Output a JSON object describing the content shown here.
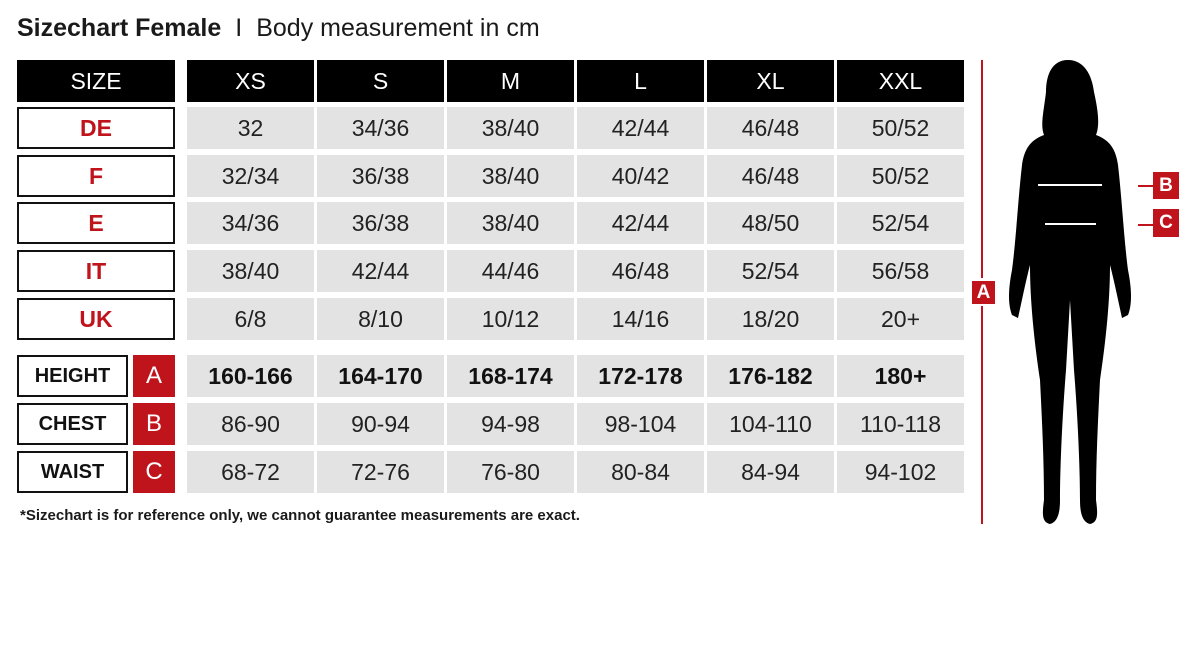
{
  "title": {
    "main": "Sizechart Female",
    "separator": "I",
    "subtitle": "Body measurement in cm"
  },
  "header": {
    "label": "SIZE",
    "sizes": [
      "XS",
      "S",
      "M",
      "L",
      "XL",
      "XXL"
    ]
  },
  "country_rows": [
    {
      "label": "DE",
      "values": [
        "32",
        "34/36",
        "38/40",
        "42/44",
        "46/48",
        "50/52"
      ]
    },
    {
      "label": "F",
      "values": [
        "32/34",
        "36/38",
        "38/40",
        "40/42",
        "46/48",
        "50/52"
      ]
    },
    {
      "label": "E",
      "values": [
        "34/36",
        "36/38",
        "38/40",
        "42/44",
        "48/50",
        "52/54"
      ]
    },
    {
      "label": "IT",
      "values": [
        "38/40",
        "42/44",
        "44/46",
        "46/48",
        "52/54",
        "56/58"
      ]
    },
    {
      "label": "UK",
      "values": [
        "6/8",
        "8/10",
        "10/12",
        "14/16",
        "18/20",
        "20+"
      ]
    }
  ],
  "measurement_rows": [
    {
      "label": "HEIGHT",
      "letter": "A",
      "values": [
        "160-166",
        "164-170",
        "168-174",
        "172-178",
        "176-182",
        "180+"
      ]
    },
    {
      "label": "CHEST",
      "letter": "B",
      "values": [
        "86-90",
        "90-94",
        "94-98",
        "98-104",
        "104-110",
        "110-118"
      ]
    },
    {
      "label": "WAIST",
      "letter": "C",
      "values": [
        "68-72",
        "72-76",
        "76-80",
        "80-84",
        "84-94",
        "94-102"
      ]
    }
  ],
  "footnote": "*Sizechart is for reference only, we cannot guarantee measurements are exact.",
  "figure": {
    "height_tag": "A",
    "chest_tag": "B",
    "waist_tag": "C"
  },
  "colors": {
    "accent": "#c0141c",
    "header_bg": "#000000",
    "cell_bg": "#e3e3e3"
  }
}
